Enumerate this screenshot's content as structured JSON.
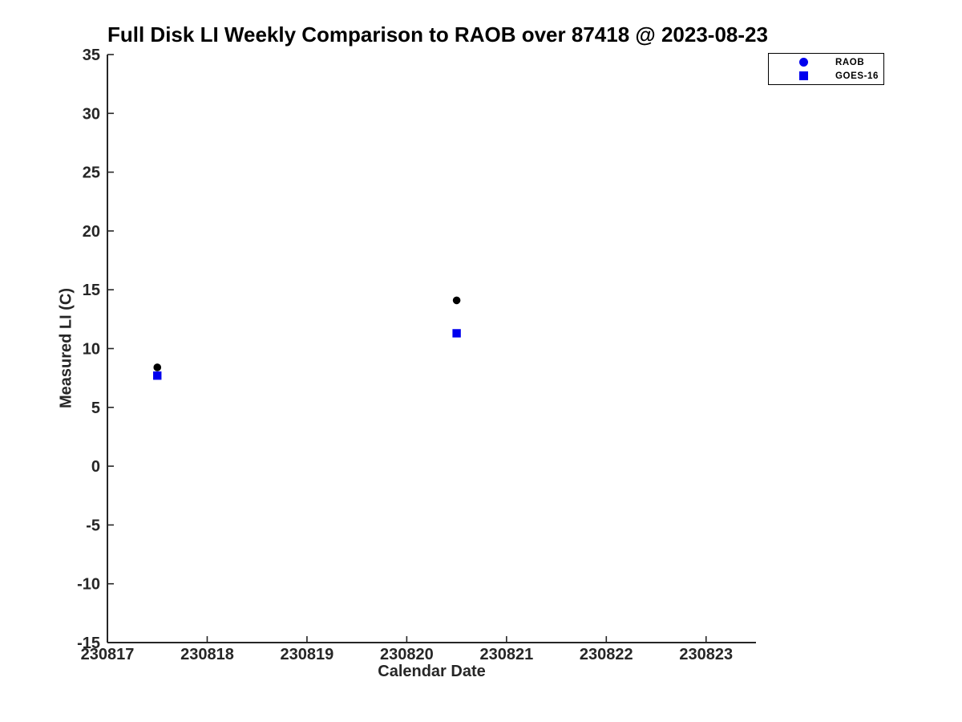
{
  "chart_data": {
    "type": "scatter",
    "title": "Full Disk LI Weekly Comparison to RAOB over 87418 @ 2023-08-23",
    "xlabel": "Calendar Date",
    "ylabel": "Measured LI (C)",
    "xlim": [
      230817,
      230823.5
    ],
    "ylim": [
      -15,
      35
    ],
    "xticks": [
      230817,
      230818,
      230819,
      230820,
      230821,
      230822,
      230823
    ],
    "yticks": [
      35,
      30,
      25,
      20,
      15,
      10,
      5,
      0,
      -5,
      -10,
      -15
    ],
    "grid": false,
    "legend_position": "top-right",
    "axis_color": "#262626",
    "background_color": "#ffffff",
    "series": [
      {
        "name": "RAOB",
        "marker": "circle",
        "marker_color": "#000000",
        "legend_marker_color": "#0000EE",
        "points": [
          {
            "x": 230817.5,
            "y": 8.4
          },
          {
            "x": 230820.5,
            "y": 14.1
          }
        ]
      },
      {
        "name": "GOES-16",
        "marker": "square",
        "marker_color": "#0000EE",
        "legend_marker_color": "#0000EE",
        "points": [
          {
            "x": 230817.5,
            "y": 7.7
          },
          {
            "x": 230820.5,
            "y": 11.3
          }
        ]
      }
    ]
  }
}
